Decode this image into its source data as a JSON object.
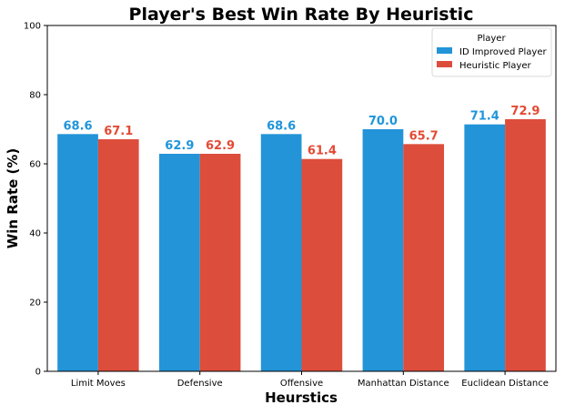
{
  "chart_data": {
    "type": "bar",
    "title": "Player's Best Win Rate By Heuristic",
    "xlabel": "Heurstics",
    "ylabel": "Win Rate (%)",
    "ylim": [
      0,
      100
    ],
    "yticks": [
      "0",
      "20",
      "40",
      "60",
      "80",
      "100"
    ],
    "categories": [
      "Limit Moves",
      "Defensive",
      "Offensive",
      "Manhattan Distance",
      "Euclidean Distance"
    ],
    "series": [
      {
        "name": "ID Improved Player",
        "color": "#2394d8",
        "label_color": "#1f95d9",
        "values": [
          68.6,
          62.9,
          68.6,
          70.0,
          71.4
        ],
        "labels": [
          "68.6",
          "62.9",
          "68.6",
          "70.0",
          "71.4"
        ]
      },
      {
        "name": "Heuristic Player",
        "color": "#dd4d3b",
        "label_color": "#e44a34",
        "values": [
          67.1,
          62.9,
          61.4,
          65.7,
          72.9
        ],
        "labels": [
          "67.1",
          "62.9",
          "61.4",
          "65.7",
          "72.9"
        ]
      }
    ],
    "legend": {
      "title": "Player",
      "position": "top-right"
    },
    "grid": false
  }
}
